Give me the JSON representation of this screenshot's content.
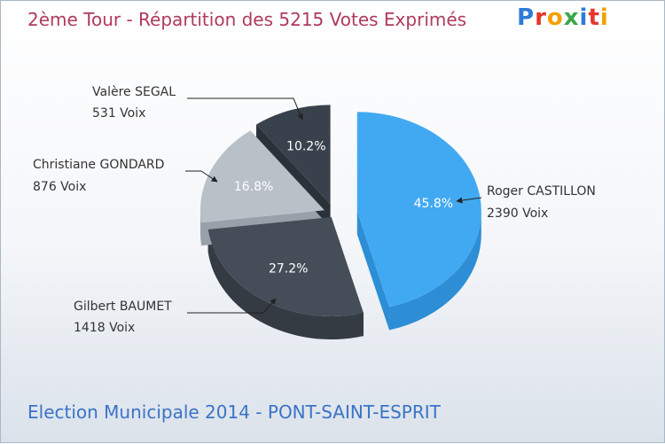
{
  "title": "2ème Tour - Répartition des 5215 Votes Exprimés",
  "subtitle": "Election Municipale 2014 - PONT-SAINT-ESPRIT",
  "logo": "Proxiti",
  "chart_data": {
    "type": "pie",
    "title": "2ème Tour - Répartition des 5215 Votes Exprimés",
    "total_votes": 5215,
    "slices": [
      {
        "name": "Roger CASTILLON",
        "votes_label": "2390 Voix",
        "value": 2390,
        "pct": 45.8,
        "pct_label": "45.8%",
        "color": "#41a9f1",
        "side_color": "#2d8ed6"
      },
      {
        "name": "Gilbert BAUMET",
        "votes_label": "1418 Voix",
        "value": 1418,
        "pct": 27.2,
        "pct_label": "27.2%",
        "color": "#454e58",
        "side_color": "#343b43"
      },
      {
        "name": "Christiane GONDARD",
        "votes_label": "876 Voix",
        "value": 876,
        "pct": 16.8,
        "pct_label": "16.8%",
        "color": "#b8c0c8",
        "side_color": "#98a1aa"
      },
      {
        "name": "Valère SEGAL",
        "votes_label": "531 Voix",
        "value": 531,
        "pct": 10.2,
        "pct_label": "10.2%",
        "color": "#39424c",
        "side_color": "#2a3139"
      }
    ]
  }
}
